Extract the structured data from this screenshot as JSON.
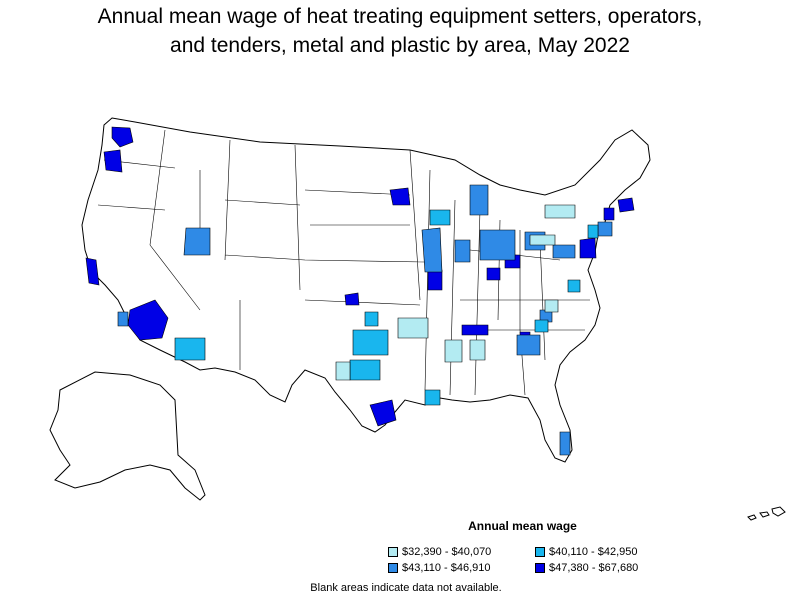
{
  "title": {
    "line1": "Annual mean wage of heat treating equipment setters, operators,",
    "line2": "and tenders, metal and plastic by area, May 2022"
  },
  "legend": {
    "title": "Annual mean wage",
    "items": [
      {
        "label": "$32,390 - $40,070",
        "color": "#b3ebf2"
      },
      {
        "label": "$40,110 - $42,950",
        "color": "#19b6ee"
      },
      {
        "label": "$43,110 - $46,910",
        "color": "#2f8ae6"
      },
      {
        "label": "$47,380 - $67,680",
        "color": "#0000e6"
      }
    ]
  },
  "note": "Blank areas indicate data not available.",
  "colors": {
    "tier1": "#b3ebf2",
    "tier2": "#19b6ee",
    "tier3": "#2f8ae6",
    "tier4": "#0000e6",
    "border": "#000000",
    "blank": "#ffffff"
  }
}
